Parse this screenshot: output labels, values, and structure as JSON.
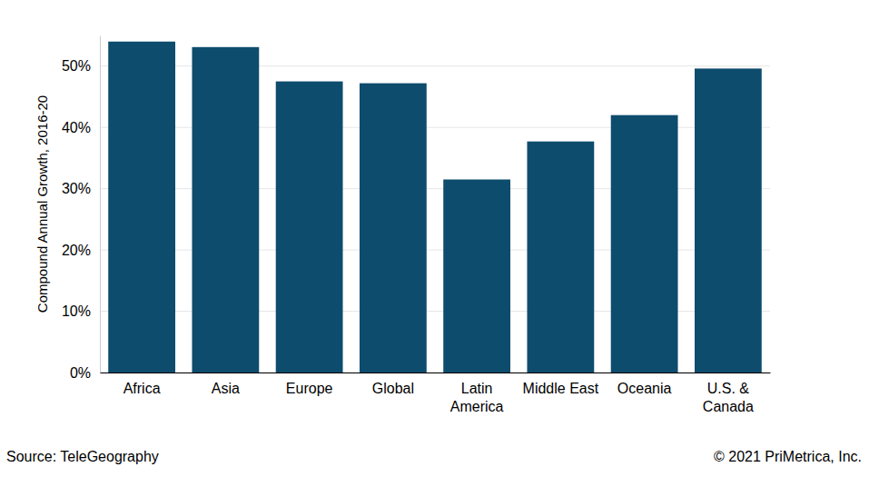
{
  "chart_data": {
    "type": "bar",
    "categories": [
      "Africa",
      "Asia",
      "Europe",
      "Global",
      "Latin\nAmerica",
      "Middle East",
      "Oceania",
      "U.S. &\nCanada"
    ],
    "values": [
      54.0,
      53.1,
      47.5,
      47.2,
      31.5,
      37.7,
      42.0,
      49.6
    ],
    "color": "#0e4c6d",
    "y_label": "Compound Annual Growth, 2016-20",
    "ylim": [
      0,
      55
    ],
    "yticks": [
      {
        "value": 0,
        "label": "0%"
      },
      {
        "value": 10,
        "label": "10%"
      },
      {
        "value": 20,
        "label": "20%"
      },
      {
        "value": 30,
        "label": "30%"
      },
      {
        "value": 40,
        "label": "40%"
      },
      {
        "value": 50,
        "label": "50%"
      }
    ],
    "grid": true,
    "annotations": [
      "Source: TeleGeography",
      "© 2021 PriMetrica, Inc."
    ]
  }
}
